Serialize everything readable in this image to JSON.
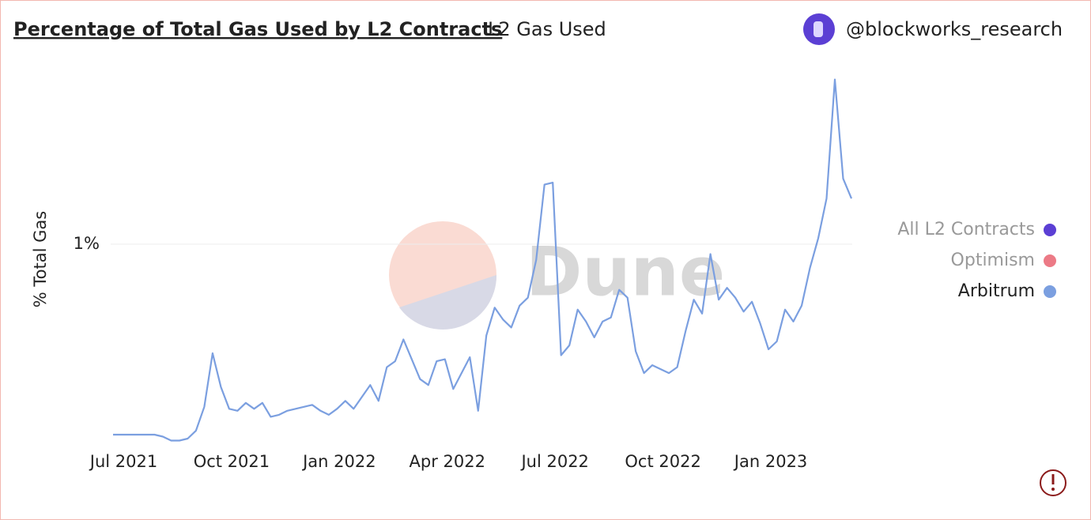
{
  "chart_data": {
    "type": "line",
    "title": "Percentage of Total Gas Used by L2 Contracts",
    "subtitle": "L2 Gas Used",
    "author": "@blockworks_research",
    "watermark": "Dune",
    "y_label": "% Total Gas",
    "ylim": [
      0,
      1.9
    ],
    "yticks": [
      {
        "value": 1,
        "label": "1%"
      }
    ],
    "grid": true,
    "legend": "right",
    "categories": [
      null,
      "Jul 2021",
      null,
      null,
      null,
      null,
      null,
      null,
      null,
      null,
      null,
      null,
      null,
      null,
      "Oct 2021",
      null,
      null,
      null,
      null,
      null,
      null,
      null,
      null,
      null,
      null,
      null,
      null,
      "Jan 2022",
      null,
      null,
      null,
      null,
      null,
      null,
      null,
      null,
      null,
      null,
      null,
      null,
      "Apr 2022",
      null,
      null,
      null,
      null,
      null,
      null,
      null,
      null,
      null,
      null,
      null,
      null,
      "Jul 2022",
      null,
      null,
      null,
      null,
      null,
      null,
      null,
      null,
      null,
      null,
      null,
      null,
      "Oct 2022",
      null,
      null,
      null,
      null,
      null,
      null,
      null,
      null,
      null,
      null,
      null,
      null,
      "Jan 2023",
      null,
      null,
      null,
      null,
      null,
      null,
      null,
      null,
      null,
      null
    ],
    "series": [
      {
        "name": "All L2 Contracts",
        "color": "#5b3fd4",
        "hidden": true
      },
      {
        "name": "Optimism",
        "color": "#ec7a86",
        "hidden": true
      },
      {
        "name": "Arbitrum",
        "color": "#7b9fe0",
        "values": [
          0.04,
          0.04,
          0.04,
          0.04,
          0.04,
          0.04,
          0.03,
          0.01,
          0.01,
          0.02,
          0.06,
          0.18,
          0.45,
          0.28,
          0.17,
          0.16,
          0.2,
          0.17,
          0.2,
          0.13,
          0.14,
          0.16,
          0.17,
          0.18,
          0.19,
          0.16,
          0.14,
          0.17,
          0.21,
          0.17,
          0.23,
          0.29,
          0.21,
          0.38,
          0.41,
          0.52,
          0.42,
          0.32,
          0.29,
          0.41,
          0.42,
          0.27,
          0.35,
          0.43,
          0.16,
          0.54,
          0.68,
          0.62,
          0.58,
          0.69,
          0.73,
          0.92,
          1.3,
          1.31,
          0.44,
          0.49,
          0.67,
          0.61,
          0.53,
          0.61,
          0.63,
          0.77,
          0.73,
          0.46,
          0.35,
          0.39,
          0.37,
          0.35,
          0.38,
          0.56,
          0.72,
          0.65,
          0.95,
          0.72,
          0.78,
          0.73,
          0.66,
          0.71,
          0.6,
          0.47,
          0.51,
          0.67,
          0.61,
          0.69,
          0.88,
          1.03,
          1.23,
          1.83,
          1.33,
          1.23
        ]
      }
    ]
  }
}
